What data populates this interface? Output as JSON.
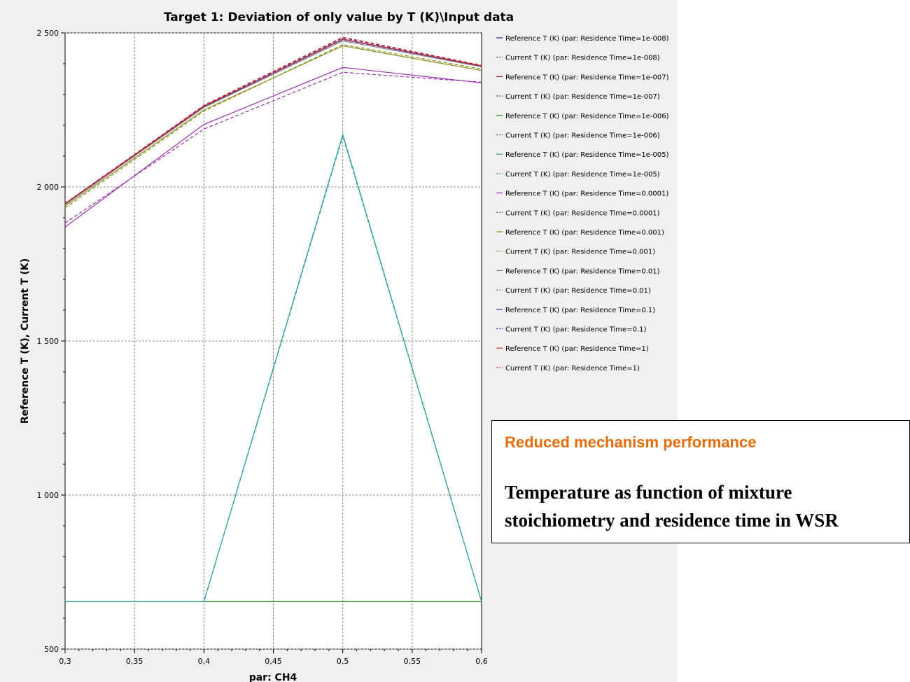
{
  "chart_data": {
    "type": "line",
    "title": "Target 1: Deviation of only value by T (K)\\Input data",
    "xlabel": "par: CH4",
    "ylabel": "Reference T (K), Current T (K)",
    "xlim": [
      0.3,
      0.6
    ],
    "ylim": [
      500,
      2500
    ],
    "x": [
      0.3,
      0.4,
      0.5,
      0.6
    ],
    "x_tick_labels": [
      "0,3",
      "0,35",
      "0,4",
      "0,45",
      "0,5",
      "0,55",
      "0,6"
    ],
    "y_tick_labels": [
      "500",
      "1 000",
      "1 500",
      "2 000",
      "2 500"
    ],
    "grid": true,
    "legend_position": "right",
    "series": [
      {
        "name": "Reference T (K) (par: Residence Time=1e-008)",
        "color": "#1f1f8c",
        "dash": "solid",
        "values": [
          654,
          654,
          654,
          654
        ]
      },
      {
        "name": "Current T (K) (par: Residence Time=1e-008)",
        "color": "#1f1f8c",
        "dash": "dashed",
        "values": [
          654,
          654,
          654,
          654
        ]
      },
      {
        "name": "Reference T (K) (par: Residence Time=1e-007)",
        "color": "#8c1f1f",
        "dash": "solid",
        "values": [
          654,
          654,
          654,
          654
        ]
      },
      {
        "name": "Current T (K) (par: Residence Time=1e-007)",
        "color": "#8c1f1f",
        "dash": "dashed",
        "values": [
          654,
          654,
          654,
          654
        ]
      },
      {
        "name": "Reference T (K) (par: Residence Time=1e-006)",
        "color": "#2a8c2a",
        "dash": "solid",
        "values": [
          654,
          654,
          654,
          654
        ]
      },
      {
        "name": "Current T (K) (par: Residence Time=1e-006)",
        "color": "#2a8c2a",
        "dash": "dashed",
        "values": [
          654,
          654,
          654,
          654
        ]
      },
      {
        "name": "Reference T (K) (par: Residence Time=1e-005)",
        "color": "#2a9c9c",
        "dash": "solid",
        "values": [
          654,
          654,
          2170,
          654
        ]
      },
      {
        "name": "Current T (K) (par: Residence Time=1e-005)",
        "color": "#2a9c9c",
        "dash": "dashed",
        "values": [
          654,
          654,
          2165,
          654
        ]
      },
      {
        "name": "Reference T (K) (par: Residence Time=0.0001)",
        "color": "#9b2fae",
        "dash": "solid",
        "values": [
          1870,
          2203,
          2388,
          2338
        ]
      },
      {
        "name": "Current T (K) (par: Residence Time=0.0001)",
        "color": "#9b2fae",
        "dash": "dashed",
        "values": [
          1883,
          2188,
          2372,
          2340
        ]
      },
      {
        "name": "Reference T (K) (par: Residence Time=0.001)",
        "color": "#8c8c1f",
        "dash": "solid",
        "values": [
          1938,
          2250,
          2458,
          2378
        ]
      },
      {
        "name": "Current T (K) (par: Residence Time=0.001)",
        "color": "#8c8c1f",
        "dash": "dashed",
        "values": [
          1932,
          2246,
          2462,
          2383
        ]
      },
      {
        "name": "Reference T (K) (par: Residence Time=0.01)",
        "color": "#808080",
        "dash": "solid",
        "values": [
          1943,
          2258,
          2474,
          2390
        ]
      },
      {
        "name": "Current T (K) (par: Residence Time=0.01)",
        "color": "#808080",
        "dash": "dashed",
        "values": [
          1944,
          2260,
          2478,
          2392
        ]
      },
      {
        "name": "Reference T (K) (par: Residence Time=0.1)",
        "color": "#2a2acc",
        "dash": "solid",
        "values": [
          1945,
          2261,
          2479,
          2392
        ]
      },
      {
        "name": "Current T (K) (par: Residence Time=0.1)",
        "color": "#2a2acc",
        "dash": "dashed",
        "values": [
          1946,
          2264,
          2484,
          2394
        ]
      },
      {
        "name": "Reference T (K) (par: Residence Time=1)",
        "color": "#cc2a2a",
        "dash": "solid",
        "values": [
          1946,
          2262,
          2480,
          2393
        ]
      },
      {
        "name": "Current T (K) (par: Residence Time=1)",
        "color": "#cc2a2a",
        "dash": "dashed",
        "values": [
          1947,
          2265,
          2486,
          2395
        ]
      }
    ]
  },
  "note": {
    "heading": "Reduced mechanism performance",
    "body": "Temperature as function of mixture stoichiometry and residence time in WSR",
    "heading_color": "#e46c0a"
  }
}
